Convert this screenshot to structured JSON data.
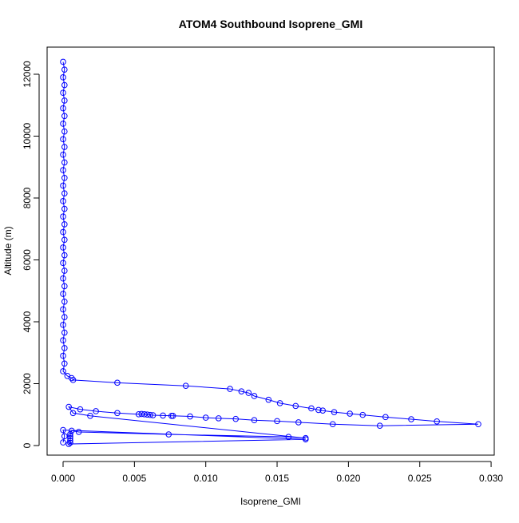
{
  "chart_data": {
    "type": "line",
    "title": "ATOM4 Southbound Isoprene_GMI",
    "x_label": "Isoprene_GMI",
    "y_label": "Altitude (m)",
    "color": "#0000ff",
    "marker": "circle",
    "x": [
      0.0,
      0.0001,
      0.0,
      0.0001,
      0.0,
      0.0001,
      0.0,
      0.0001,
      0.0,
      0.0001,
      0.0,
      0.0001,
      0.0,
      0.0001,
      0.0,
      0.0001,
      0.0,
      0.0001,
      0.0,
      0.0001,
      0.0,
      0.0001,
      0.0,
      0.0001,
      0.0,
      0.0001,
      0.0,
      0.0001,
      0.0,
      0.0001,
      0.0,
      0.0001,
      0.0,
      0.0001,
      0.0,
      0.0001,
      0.0,
      0.0001,
      0.0,
      0.0001,
      0.0,
      0.0003,
      0.0006,
      0.0007,
      0.0038,
      0.0086,
      0.0117,
      0.0125,
      0.013,
      0.0134,
      0.0144,
      0.0152,
      0.0163,
      0.0174,
      0.0179,
      0.0182,
      0.019,
      0.0201,
      0.021,
      0.0226,
      0.0244,
      0.0262,
      0.0291,
      0.0222,
      0.0189,
      0.0165,
      0.015,
      0.0134,
      0.0121,
      0.0109,
      0.01,
      0.0089,
      0.0077,
      0.0076,
      0.007,
      0.0063,
      0.0061,
      0.0059,
      0.0057,
      0.0055,
      0.0053,
      0.0038,
      0.0023,
      0.0012,
      0.0004,
      0.0007,
      0.0019,
      0.017,
      0.0158,
      0.0074,
      0.0011,
      0.0006,
      0.0005,
      0.0005,
      0.0005,
      0.0005,
      0.0005,
      0.0004,
      0.017,
      0.0,
      0.0001,
      0.0
    ],
    "values": [
      12400,
      12150,
      11900,
      11650,
      11400,
      11150,
      10900,
      10650,
      10400,
      10150,
      9900,
      9650,
      9400,
      9150,
      8900,
      8650,
      8400,
      8150,
      7900,
      7650,
      7400,
      7150,
      6900,
      6650,
      6400,
      6150,
      5900,
      5650,
      5400,
      5150,
      4900,
      4650,
      4400,
      4150,
      3900,
      3650,
      3400,
      3150,
      2900,
      2650,
      2400,
      2250,
      2180,
      2120,
      2030,
      1930,
      1830,
      1750,
      1700,
      1600,
      1480,
      1370,
      1280,
      1200,
      1150,
      1130,
      1080,
      1030,
      990,
      920,
      850,
      780,
      690,
      640,
      690,
      750,
      790,
      820,
      860,
      880,
      900,
      940,
      960,
      960,
      970,
      980,
      990,
      1000,
      1010,
      1020,
      1010,
      1050,
      1110,
      1170,
      1250,
      1050,
      960,
      240,
      280,
      360,
      440,
      480,
      370,
      300,
      240,
      160,
      90,
      50,
      200,
      500,
      300,
      100
    ],
    "xlim": [
      -0.00112,
      0.03022
    ],
    "ylim": [
      -310,
      12877
    ],
    "xticks": [
      {
        "value": 0,
        "label": "0.000"
      },
      {
        "value": 0.005,
        "label": "0.005"
      },
      {
        "value": 0.01,
        "label": "0.010"
      },
      {
        "value": 0.015,
        "label": "0.015"
      },
      {
        "value": 0.02,
        "label": "0.020"
      },
      {
        "value": 0.025,
        "label": "0.025"
      },
      {
        "value": 0.03,
        "label": "0.030"
      }
    ],
    "yticks": [
      0,
      2000,
      4000,
      6000,
      8000,
      10000,
      12000
    ]
  }
}
